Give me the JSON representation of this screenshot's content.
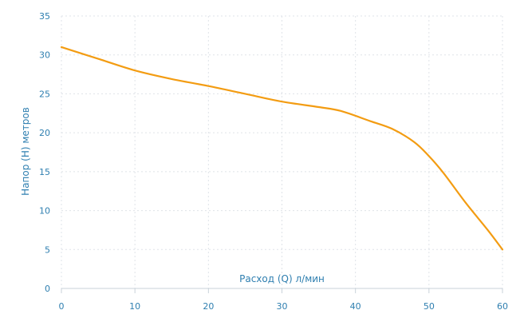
{
  "chart_data": {
    "type": "line",
    "title": "",
    "xlabel": "Расход (Q) л/мин",
    "ylabel": "Напор (H) метров",
    "xlim": [
      0,
      60
    ],
    "ylim": [
      0,
      35
    ],
    "x_ticks": [
      0,
      10,
      20,
      30,
      40,
      50,
      60
    ],
    "y_ticks": [
      0,
      5,
      10,
      15,
      20,
      25,
      30,
      35
    ],
    "grid": true,
    "legend": "none",
    "series": [
      {
        "color": "#f39c12",
        "x": [
          0,
          5,
          10,
          15,
          20,
          25,
          30,
          35,
          38,
          42,
          45,
          48,
          50,
          52,
          55,
          58,
          60
        ],
        "y": [
          31,
          29.5,
          28,
          26.9,
          26,
          25,
          24,
          23.3,
          22.8,
          21.5,
          20.5,
          18.8,
          17.0,
          14.8,
          11.0,
          7.5,
          5.0
        ]
      }
    ]
  }
}
